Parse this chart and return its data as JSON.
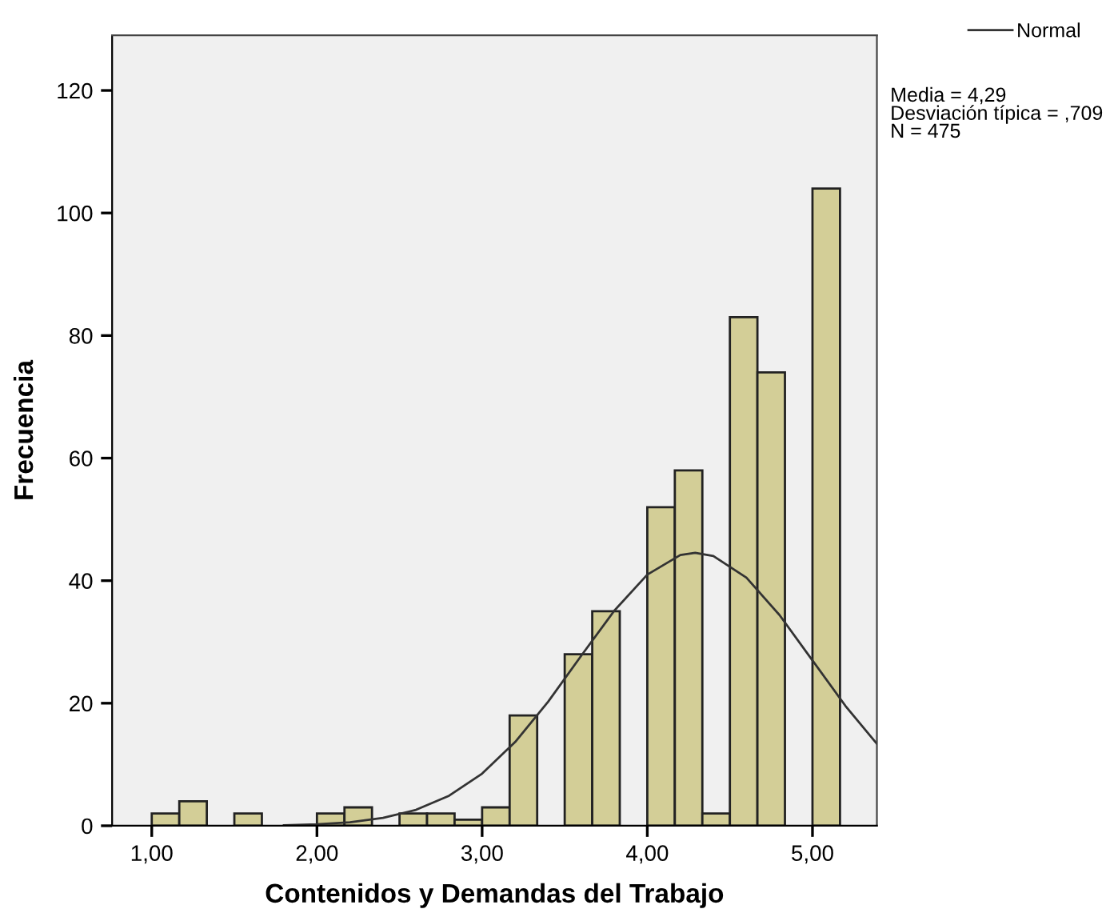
{
  "chart_data": {
    "type": "histogram",
    "xlabel": "Contenidos y Demandas del Trabajo",
    "ylabel": "Frecuencia",
    "bins": [
      1.0,
      1.1667,
      1.3333,
      1.5,
      1.6667,
      1.8333,
      2.0,
      2.1667,
      2.3333,
      2.5,
      2.6667,
      2.8333,
      3.0,
      3.1667,
      3.3333,
      3.5,
      3.6667,
      3.8333,
      4.0,
      4.1667,
      4.3333,
      4.5,
      4.6667,
      4.8333,
      5.0,
      5.1667
    ],
    "values": [
      2,
      4,
      0,
      2,
      0,
      0,
      2,
      3,
      0,
      2,
      2,
      1,
      3,
      18,
      0,
      28,
      35,
      0,
      52,
      58,
      2,
      83,
      74,
      0,
      104
    ],
    "color": "#d3ce97",
    "series": [
      {
        "type": "line",
        "name": "Normal",
        "color": "#333333",
        "x": [
          1.8,
          2.0,
          2.2,
          2.4,
          2.6,
          2.8,
          3.0,
          3.2,
          3.4,
          3.6,
          3.8,
          4.0,
          4.2,
          4.29,
          4.4,
          4.6,
          4.8,
          5.0,
          5.2,
          5.39
        ],
        "values": [
          0.09,
          0.24,
          0.58,
          1.28,
          2.6,
          4.9,
          8.51,
          13.67,
          20.26,
          27.75,
          35.09,
          40.98,
          44.19,
          44.55,
          44.02,
          40.49,
          34.4,
          26.98,
          19.55,
          13.37
        ]
      }
    ],
    "xlim": [
      0.76,
      5.39
    ],
    "ylim": [
      0,
      129
    ],
    "xticks": [
      {
        "value": 1,
        "label": "1,00"
      },
      {
        "value": 2,
        "label": "2,00"
      },
      {
        "value": 3,
        "label": "3,00"
      },
      {
        "value": 4,
        "label": "4,00"
      },
      {
        "value": 5,
        "label": "5,00"
      }
    ],
    "yticks": [
      0,
      20,
      40,
      60,
      80,
      100,
      120
    ],
    "annotations": [
      "Media = 4,29\nDesviación típica = ,709\nN = 475"
    ],
    "legend": "top right",
    "grid": false
  }
}
